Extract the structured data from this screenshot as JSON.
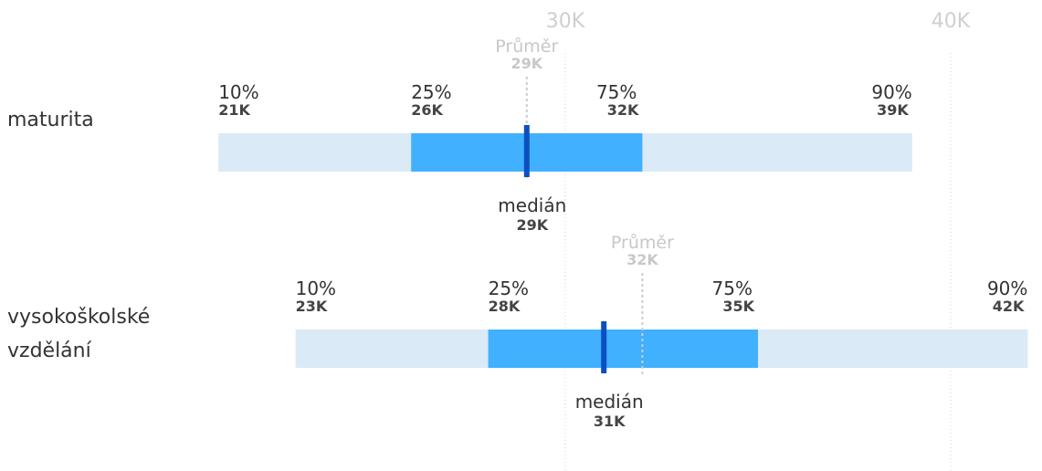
{
  "chart_data": {
    "type": "bar",
    "xticks": [
      {
        "value": 30000,
        "label": "30K"
      },
      {
        "value": 40000,
        "label": "40K"
      }
    ],
    "colors": {
      "outer": "#daeaf6",
      "inner": "#41b0ff",
      "median": "#0b4fc2",
      "mean": "#cccccc",
      "grid": "#d0d0d0"
    },
    "mean_label": "Průměr",
    "median_label": "medián",
    "rows": [
      {
        "label_lines": [
          "maturita"
        ],
        "p10": 21000,
        "p25": 26000,
        "median": 29000,
        "mean": 29000,
        "p75": 32000,
        "p90": 39000,
        "labels": {
          "p10": "10%",
          "p10_val": "21K",
          "p25": "25%",
          "p25_val": "26K",
          "p75": "75%",
          "p75_val": "32K",
          "p90": "90%",
          "p90_val": "39K",
          "mean_val": "29K",
          "median_val": "29K"
        }
      },
      {
        "label_lines": [
          "vysokoškolské",
          "vzdělání"
        ],
        "p10": 23000,
        "p25": 28000,
        "median": 31000,
        "mean": 32000,
        "p75": 35000,
        "p90": 42000,
        "labels": {
          "p10": "10%",
          "p10_val": "23K",
          "p25": "25%",
          "p25_val": "28K",
          "p75": "75%",
          "p75_val": "35K",
          "p90": "90%",
          "p90_val": "42K",
          "mean_val": "32K",
          "median_val": "31K"
        }
      }
    ]
  }
}
